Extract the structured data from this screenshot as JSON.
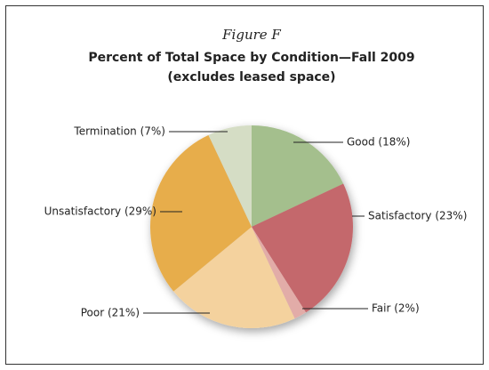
{
  "chart_data": {
    "type": "pie",
    "figure_label": "Figure F",
    "title": "Percent of Total Space by Condition—Fall 2009",
    "subtitle": "(excludes leased space)",
    "values": [
      18,
      23,
      2,
      21,
      29,
      7
    ],
    "value_labels": [
      "Good (18%)",
      "Satisfactory (23%)",
      "Fair (2%)",
      "Poor (21%)",
      "Unsatisfactory (29%)",
      "Termination (7%)"
    ],
    "colors": [
      "#a4bf8d",
      "#c4686c",
      "#e2aca8",
      "#f4d29e",
      "#e7ad4c",
      "#d5ddc5"
    ]
  }
}
